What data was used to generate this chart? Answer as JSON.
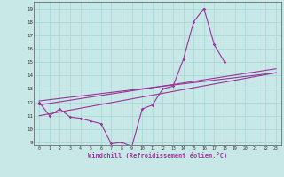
{
  "bg_color": "#c8e8e8",
  "grid_color": "#aad8d8",
  "line_color": "#993399",
  "xlabel": "Windchill (Refroidissement éolien,°C)",
  "xlim": [
    -0.5,
    23.5
  ],
  "ylim": [
    8.8,
    19.5
  ],
  "yticks": [
    9,
    10,
    11,
    12,
    13,
    14,
    15,
    16,
    17,
    18,
    19
  ],
  "xticks": [
    0,
    1,
    2,
    3,
    4,
    5,
    6,
    7,
    8,
    9,
    10,
    11,
    12,
    13,
    14,
    15,
    16,
    17,
    18,
    19,
    20,
    21,
    22,
    23
  ],
  "line1_x": [
    0,
    1,
    2,
    3,
    4,
    5,
    6,
    7,
    8,
    9,
    10,
    11,
    12,
    13,
    14,
    15,
    16,
    17,
    18
  ],
  "line1_y": [
    12.0,
    11.0,
    11.5,
    10.9,
    10.8,
    10.6,
    10.4,
    8.9,
    9.0,
    8.7,
    11.5,
    11.8,
    13.0,
    13.2,
    15.2,
    18.0,
    19.0,
    16.3,
    15.0
  ],
  "line2_x": [
    0,
    23
  ],
  "line2_y": [
    11.0,
    14.2
  ],
  "line3_x": [
    0,
    23
  ],
  "line3_y": [
    11.8,
    14.5
  ],
  "line4_x": [
    0,
    23
  ],
  "line4_y": [
    12.1,
    14.2
  ]
}
